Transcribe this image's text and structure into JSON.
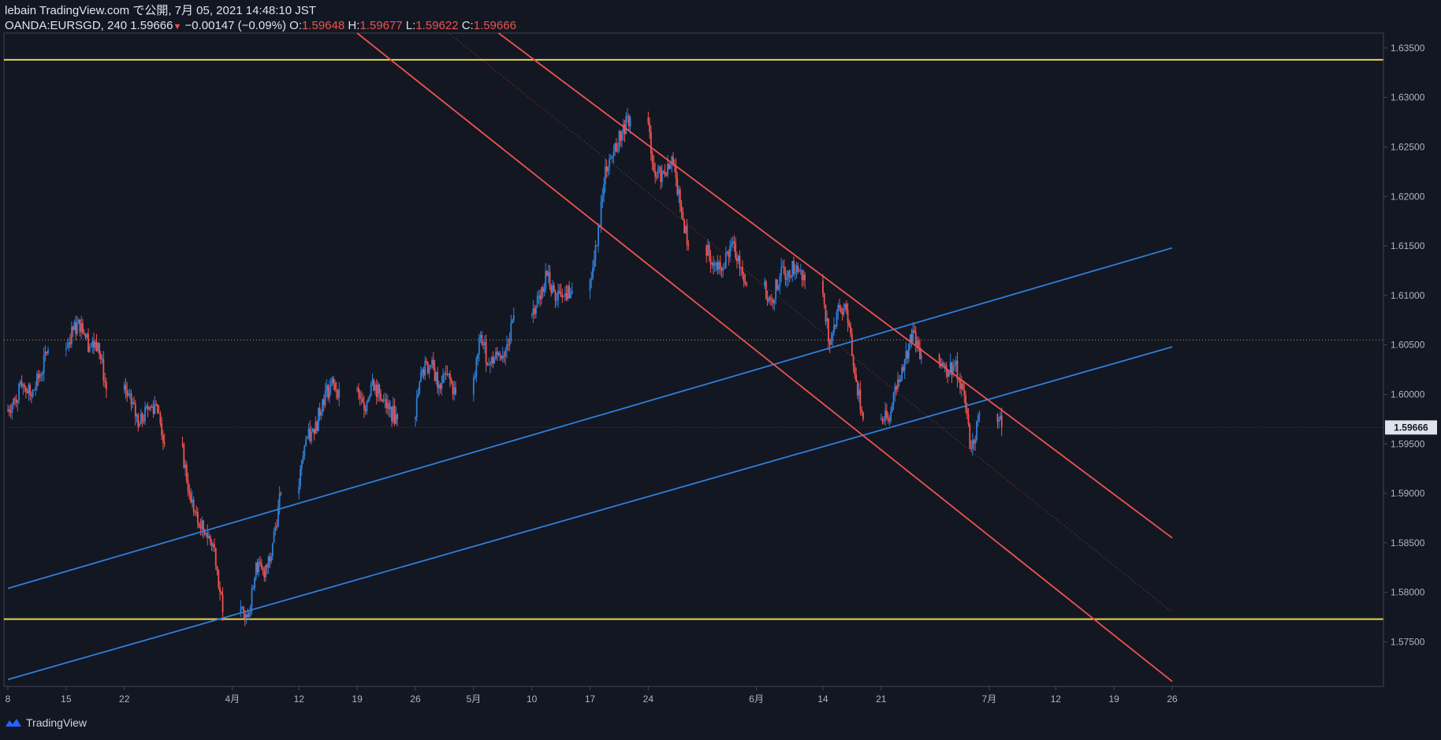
{
  "header": {
    "publisher": "lebain TradingView.com で公開, 7月 05, 2021 14:48:10 JST",
    "symbol": "OANDA:EURSGD, 240",
    "last": "1.59666",
    "arrow": "▼",
    "change": "−0.00147 (−0.09%)",
    "o_label": "O:",
    "o_value": "1.59648",
    "h_label": "H:",
    "h_value": "1.59677",
    "l_label": "L:",
    "l_value": "1.59622",
    "c_label": "C:",
    "c_value": "1.59666"
  },
  "footer": {
    "brand": "TradingView"
  },
  "colors": {
    "background": "#131722",
    "up": "#2f80d8",
    "down": "#ef5350",
    "yellow": "#e8d44d",
    "blue_line": "#2e7fd9",
    "red_line": "#ef5350",
    "axis_text": "#b2b5be"
  },
  "chart_data": {
    "type": "candlestick",
    "symbol": "OANDA:EURSGD",
    "timeframe": "240",
    "ylim": [
      1.5705,
      1.6365
    ],
    "x_ticks": [
      "8",
      "15",
      "22",
      "4月",
      "12",
      "19",
      "26",
      "5月",
      "10",
      "17",
      "24",
      "6月",
      "14",
      "21",
      "7月",
      "12",
      "19",
      "26"
    ],
    "y_ticks": [
      "1.63500",
      "1.63000",
      "1.62500",
      "1.62000",
      "1.61500",
      "1.61000",
      "1.60500",
      "1.60000",
      "1.59500",
      "1.59000",
      "1.58500",
      "1.58000",
      "1.57500"
    ],
    "last_price": "1.59666",
    "daily_close": [
      [
        "03-08",
        1.5995
      ],
      [
        "03-09",
        1.601
      ],
      [
        "03-10",
        1.5998
      ],
      [
        "03-11",
        1.602
      ],
      [
        "03-12",
        1.6045
      ],
      [
        "03-15",
        1.6065
      ],
      [
        "03-16",
        1.6072
      ],
      [
        "03-17",
        1.6048
      ],
      [
        "03-18",
        1.6052
      ],
      [
        "03-19",
        1.6005
      ],
      [
        "03-22",
        1.599
      ],
      [
        "03-23",
        1.597
      ],
      [
        "03-24",
        1.5985
      ],
      [
        "03-25",
        1.599
      ],
      [
        "03-26",
        1.595
      ],
      [
        "03-29",
        1.59
      ],
      [
        "03-30",
        1.587
      ],
      [
        "03-31",
        1.586
      ],
      [
        "04-01",
        1.5845
      ],
      [
        "04-02",
        1.578
      ],
      [
        "04-05",
        1.5775
      ],
      [
        "04-06",
        1.583
      ],
      [
        "04-07",
        1.5815
      ],
      [
        "04-08",
        1.585
      ],
      [
        "04-09",
        1.59
      ],
      [
        "04-12",
        1.5955
      ],
      [
        "04-13",
        1.596
      ],
      [
        "04-14",
        1.5995
      ],
      [
        "04-15",
        1.601
      ],
      [
        "04-16",
        1.6005
      ],
      [
        "04-19",
        1.5985
      ],
      [
        "04-20",
        1.6015
      ],
      [
        "04-21",
        1.5995
      ],
      [
        "04-22",
        1.5985
      ],
      [
        "04-23",
        1.5975
      ],
      [
        "04-26",
        1.6025
      ],
      [
        "04-27",
        1.603
      ],
      [
        "04-28",
        1.601
      ],
      [
        "04-29",
        1.602
      ],
      [
        "04-30",
        1.6
      ],
      [
        "05-03",
        1.606
      ],
      [
        "05-04",
        1.603
      ],
      [
        "05-05",
        1.604
      ],
      [
        "05-06",
        1.6045
      ],
      [
        "05-07",
        1.608
      ],
      [
        "05-10",
        1.61
      ],
      [
        "05-11",
        1.612
      ],
      [
        "05-12",
        1.6095
      ],
      [
        "05-13",
        1.61
      ],
      [
        "05-14",
        1.6105
      ],
      [
        "05-17",
        1.615
      ],
      [
        "05-18",
        1.623
      ],
      [
        "05-19",
        1.6245
      ],
      [
        "05-20",
        1.6265
      ],
      [
        "05-21",
        1.628
      ],
      [
        "05-24",
        1.622
      ],
      [
        "05-25",
        1.6225
      ],
      [
        "05-26",
        1.624
      ],
      [
        "05-27",
        1.619
      ],
      [
        "05-28",
        1.615
      ],
      [
        "05-31",
        1.613
      ],
      [
        "06-01",
        1.6125
      ],
      [
        "06-02",
        1.615
      ],
      [
        "06-03",
        1.614
      ],
      [
        "06-04",
        1.611
      ],
      [
        "06-07",
        1.6095
      ],
      [
        "06-08",
        1.612
      ],
      [
        "06-09",
        1.6125
      ],
      [
        "06-10",
        1.613
      ],
      [
        "06-11",
        1.6115
      ],
      [
        "06-14",
        1.605
      ],
      [
        "06-15",
        1.609
      ],
      [
        "06-16",
        1.6085
      ],
      [
        "06-17",
        1.602
      ],
      [
        "06-18",
        1.5975
      ],
      [
        "06-21",
        1.5975
      ],
      [
        "06-22",
        1.6005
      ],
      [
        "06-23",
        1.6035
      ],
      [
        "06-24",
        1.6065
      ],
      [
        "06-25",
        1.604
      ],
      [
        "06-28",
        1.6025
      ],
      [
        "06-29",
        1.603
      ],
      [
        "06-30",
        1.6005
      ],
      [
        "07-01",
        1.5945
      ],
      [
        "07-02",
        1.598
      ],
      [
        "07-05",
        1.59666
      ]
    ],
    "horizontal_lines": [
      {
        "style": "solid",
        "color": "#e8d44d",
        "price": 1.6338
      },
      {
        "style": "solid",
        "color": "#e8d44d",
        "price": 1.5773
      },
      {
        "style": "dotted",
        "color": "#b0a24a",
        "price": 1.6055
      }
    ],
    "trend_lines": [
      {
        "color": "#2e7fd9",
        "from": [
          "03-08",
          1.5804
        ],
        "to": [
          "07-26",
          1.6148
        ]
      },
      {
        "color": "#2e7fd9",
        "from": [
          "03-08",
          1.5712
        ],
        "to": [
          "07-26",
          1.6048
        ]
      },
      {
        "color": "#ef5350",
        "from": [
          "04-19",
          1.6365
        ],
        "to": [
          "07-26",
          1.571
        ]
      },
      {
        "color": "#ef5350",
        "from": [
          "05-06",
          1.6365
        ],
        "to": [
          "07-26",
          1.5855
        ]
      },
      {
        "color": "#ef5350",
        "style": "dotted",
        "from": [
          "04-30",
          1.6365
        ],
        "to": [
          "07-26",
          1.578
        ]
      }
    ]
  }
}
